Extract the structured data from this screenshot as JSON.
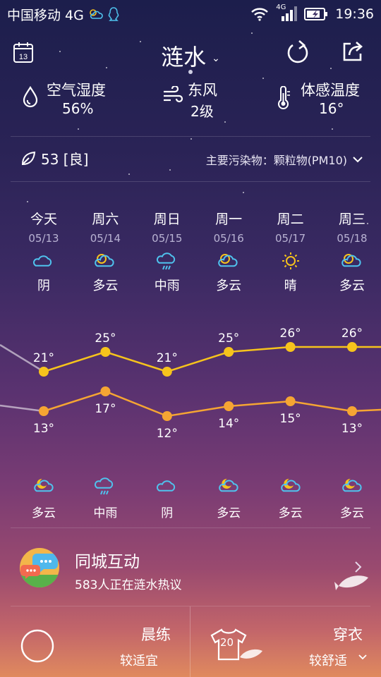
{
  "status_bar": {
    "carrier": "中国移动 4G",
    "network_small": "4G",
    "time": "19:36"
  },
  "header": {
    "city": "涟水",
    "calendar_day": "13"
  },
  "metrics": [
    {
      "label": "空气湿度",
      "value": "56%",
      "icon": "humidity-drop-icon"
    },
    {
      "label": "东风",
      "value": "2级",
      "icon": "wind-icon"
    },
    {
      "label": "体感温度",
      "value": "16°",
      "icon": "thermometer-icon"
    }
  ],
  "air_quality": {
    "aqi": "53 [良]",
    "pollutant": "主要污染物：颗粒物(PM10)"
  },
  "forecast": [
    {
      "day": "今天",
      "date": "05/13",
      "day_weather": "阴",
      "day_icon": "cloudy-icon",
      "high": "21°",
      "low": "13°",
      "night_weather": "多云",
      "night_icon": "partly-cloudy-night-icon"
    },
    {
      "day": "周六",
      "date": "05/14",
      "day_weather": "多云",
      "day_icon": "partly-cloudy-icon",
      "high": "25°",
      "low": "17°",
      "night_weather": "中雨",
      "night_icon": "rain-icon"
    },
    {
      "day": "周日",
      "date": "05/15",
      "day_weather": "中雨",
      "day_icon": "rain-icon",
      "high": "21°",
      "low": "12°",
      "night_weather": "阴",
      "night_icon": "cloudy-icon"
    },
    {
      "day": "周一",
      "date": "05/16",
      "day_weather": "多云",
      "day_icon": "partly-cloudy-icon",
      "high": "25°",
      "low": "14°",
      "night_weather": "多云",
      "night_icon": "partly-cloudy-night-icon"
    },
    {
      "day": "周二",
      "date": "05/17",
      "day_weather": "晴",
      "day_icon": "sunny-icon",
      "high": "26°",
      "low": "15°",
      "night_weather": "多云",
      "night_icon": "partly-cloudy-night-icon"
    },
    {
      "day": "周三",
      "date": "05/18",
      "day_weather": "多云",
      "day_icon": "partly-cloudy-icon",
      "high": "26°",
      "low": "13°",
      "night_weather": "多云",
      "night_icon": "partly-cloudy-night-icon"
    }
  ],
  "temps": {
    "highs": [
      21,
      25,
      21,
      25,
      26,
      26
    ],
    "lows": [
      13,
      17,
      12,
      14,
      15,
      13
    ]
  },
  "colors": {
    "high_line": "#f6c31c",
    "low_line": "#f5a533",
    "icon_blue": "#4fc3ee",
    "sun": "#f6c31c"
  },
  "community": {
    "title": "同城互动",
    "subtitle": "583人正在涟水热议"
  },
  "tiles": {
    "exercise_title": "晨练",
    "exercise_value": "较适宜",
    "clothing_title": "穿衣",
    "clothing_value": "较舒适",
    "clothing_temp": "20"
  }
}
